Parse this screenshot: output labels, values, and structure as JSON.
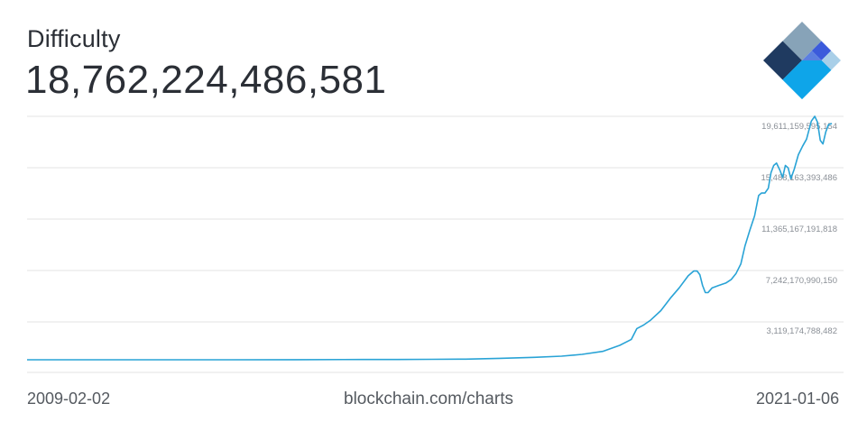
{
  "header": {
    "title": "Difficulty",
    "current_value": "18,762,224,486,581"
  },
  "footer": {
    "start_date": "2009-02-02",
    "source": "blockchain.com/charts",
    "end_date": "2021-01-06"
  },
  "colors": {
    "line": "#29a3d6",
    "grid": "#e3e3e3",
    "logo_dark": "#1f3a60",
    "logo_blue": "#0ea5e9",
    "logo_mid": "#3b5bdb",
    "logo_light": "#a9cfe8",
    "logo_grey": "#87a3b8"
  },
  "logo": {
    "icon": "blockchain-logo-icon"
  },
  "chart_data": {
    "type": "line",
    "title": "Difficulty",
    "x_start": "2009-02-02",
    "x_end": "2021-01-06",
    "y_tick_labels": [
      "19,611,159,595,154",
      "15,488,163,393,486",
      "11,365,167,191,818",
      "7,242,170,990,150",
      "3,119,174,788,482"
    ],
    "y_ticks": [
      19611159595154,
      15488163393486,
      11365167191818,
      7242170990150,
      3119174788482
    ],
    "ylim": [
      0,
      20300000000000
    ],
    "grid": true,
    "series": [
      {
        "values": [
          [
            2009.09,
            0
          ],
          [
            2010.0,
            0
          ],
          [
            2011.0,
            1000000000.0
          ],
          [
            2012.0,
            1500000000.0
          ],
          [
            2013.0,
            10000000000.0
          ],
          [
            2014.0,
            900000000000.0
          ],
          [
            2014.5,
            20000000000.0
          ],
          [
            2015.0,
            40000000000.0
          ],
          [
            2015.5,
            50000000000.0
          ],
          [
            2016.0,
            120000000000.0
          ],
          [
            2016.5,
            200000000000.0
          ],
          [
            2016.9,
            300000000000.0
          ],
          [
            2017.2,
            450000000000.0
          ],
          [
            2017.5,
            700000000000.0
          ],
          [
            2017.75,
            1200000000000.0
          ],
          [
            2017.92,
            1700000000000.0
          ],
          [
            2018.0,
            2600000000000.0
          ],
          [
            2018.1,
            2900000000000.0
          ],
          [
            2018.2,
            3300000000000.0
          ],
          [
            2018.35,
            4100000000000.0
          ],
          [
            2018.5,
            5200000000000.0
          ],
          [
            2018.62,
            6000000000000.0
          ],
          [
            2018.75,
            7000000000000.0
          ],
          [
            2018.83,
            7400000000000.0
          ],
          [
            2018.88,
            7400000000000.0
          ],
          [
            2018.92,
            7100000000000.0
          ],
          [
            2018.96,
            6200000000000.0
          ],
          [
            2019.0,
            5600000000000.0
          ],
          [
            2019.04,
            5600000000000.0
          ],
          [
            2019.1,
            6000000000000.0
          ],
          [
            2019.2,
            6200000000000.0
          ],
          [
            2019.3,
            6400000000000.0
          ],
          [
            2019.38,
            6700000000000.0
          ],
          [
            2019.45,
            7200000000000.0
          ],
          [
            2019.52,
            8000000000000.0
          ],
          [
            2019.58,
            9500000000000.0
          ],
          [
            2019.65,
            10800000000000.0
          ],
          [
            2019.72,
            12000000000000.0
          ],
          [
            2019.78,
            13700000000000.0
          ],
          [
            2019.82,
            13900000000000.0
          ],
          [
            2019.87,
            13900000000000.0
          ],
          [
            2019.92,
            14300000000000.0
          ],
          [
            2019.96,
            15600000000000.0
          ],
          [
            2020.0,
            16200000000000.0
          ],
          [
            2020.04,
            16400000000000.0
          ],
          [
            2020.09,
            15800000000000.0
          ],
          [
            2020.13,
            15200000000000.0
          ],
          [
            2020.17,
            16200000000000.0
          ],
          [
            2020.21,
            16000000000000.0
          ],
          [
            2020.25,
            15100000000000.0
          ],
          [
            2020.3,
            15900000000000.0
          ],
          [
            2020.36,
            17100000000000.0
          ],
          [
            2020.42,
            17800000000000.0
          ],
          [
            2020.48,
            18400000000000.0
          ],
          [
            2020.55,
            19900000000000.0
          ],
          [
            2020.6,
            20300000000000.0
          ],
          [
            2020.64,
            19800000000000.0
          ],
          [
            2020.68,
            18300000000000.0
          ],
          [
            2020.72,
            18000000000000.0
          ],
          [
            2020.76,
            19000000000000.0
          ],
          [
            2020.8,
            19600000000000.0
          ],
          [
            2020.85,
            19700000000000.0
          ]
        ]
      }
    ]
  }
}
